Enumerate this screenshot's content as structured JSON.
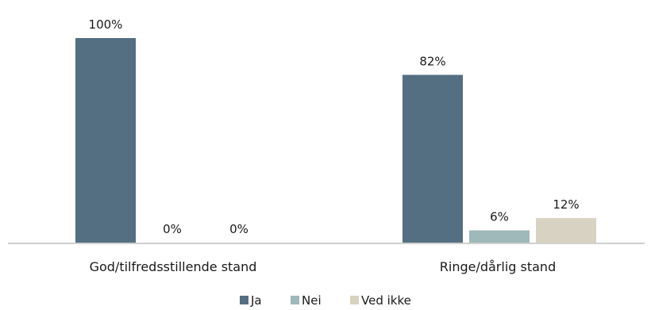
{
  "chart_data": {
    "type": "bar",
    "categories": [
      "God/tilfredsstillende stand",
      "Ringe/dårlig stand"
    ],
    "series": [
      {
        "name": "Ja",
        "values": [
          100,
          82
        ],
        "labels": [
          "100%",
          "82%"
        ]
      },
      {
        "name": "Nei",
        "values": [
          0,
          6
        ],
        "labels": [
          "0%",
          "6%"
        ]
      },
      {
        "name": "Ved ikke",
        "values": [
          0,
          12
        ],
        "labels": [
          "0%",
          "12%"
        ]
      }
    ],
    "ylim": [
      0,
      100
    ],
    "unit": "%",
    "grid": false,
    "legend": "bottom",
    "colors": [
      "#546f82",
      "#9fb8b9",
      "#d8d2c2"
    ]
  }
}
